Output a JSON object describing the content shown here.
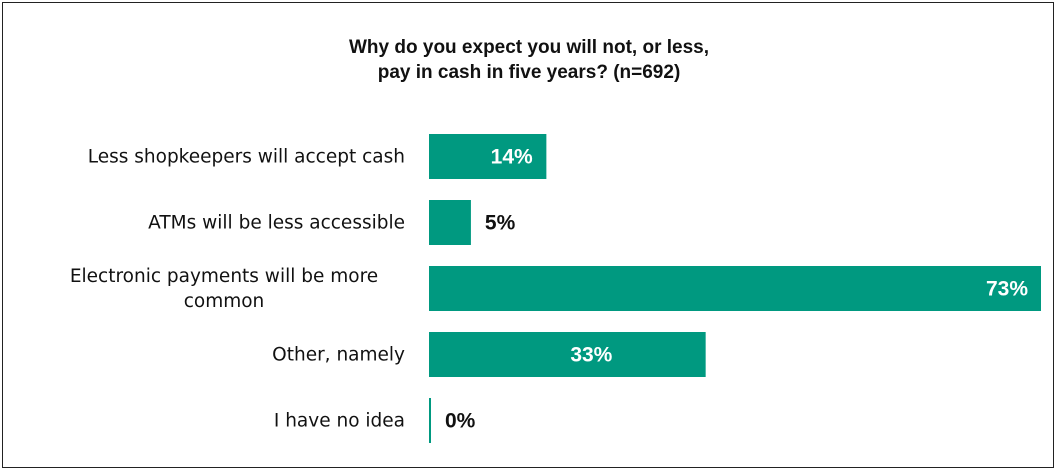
{
  "chart_data": {
    "type": "bar",
    "orientation": "horizontal",
    "title": [
      "Why do you expect you will not, or less,",
      "pay in cash in five years? (n=692)"
    ],
    "categories": [
      [
        "Less shopkeepers will accept cash"
      ],
      [
        "ATMs will be less accessible"
      ],
      [
        "Electronic payments will be more",
        "common"
      ],
      [
        "Other, namely"
      ],
      [
        "I have no idea"
      ]
    ],
    "values": [
      14,
      5,
      73,
      33,
      0
    ],
    "value_labels": [
      "14%",
      "5%",
      "73%",
      "33%",
      "0%"
    ],
    "xlim": [
      0,
      73
    ],
    "grid": false,
    "bar_color": "#009980",
    "label_color_inside": "#ffffff",
    "label_color_outside": "#111111"
  }
}
